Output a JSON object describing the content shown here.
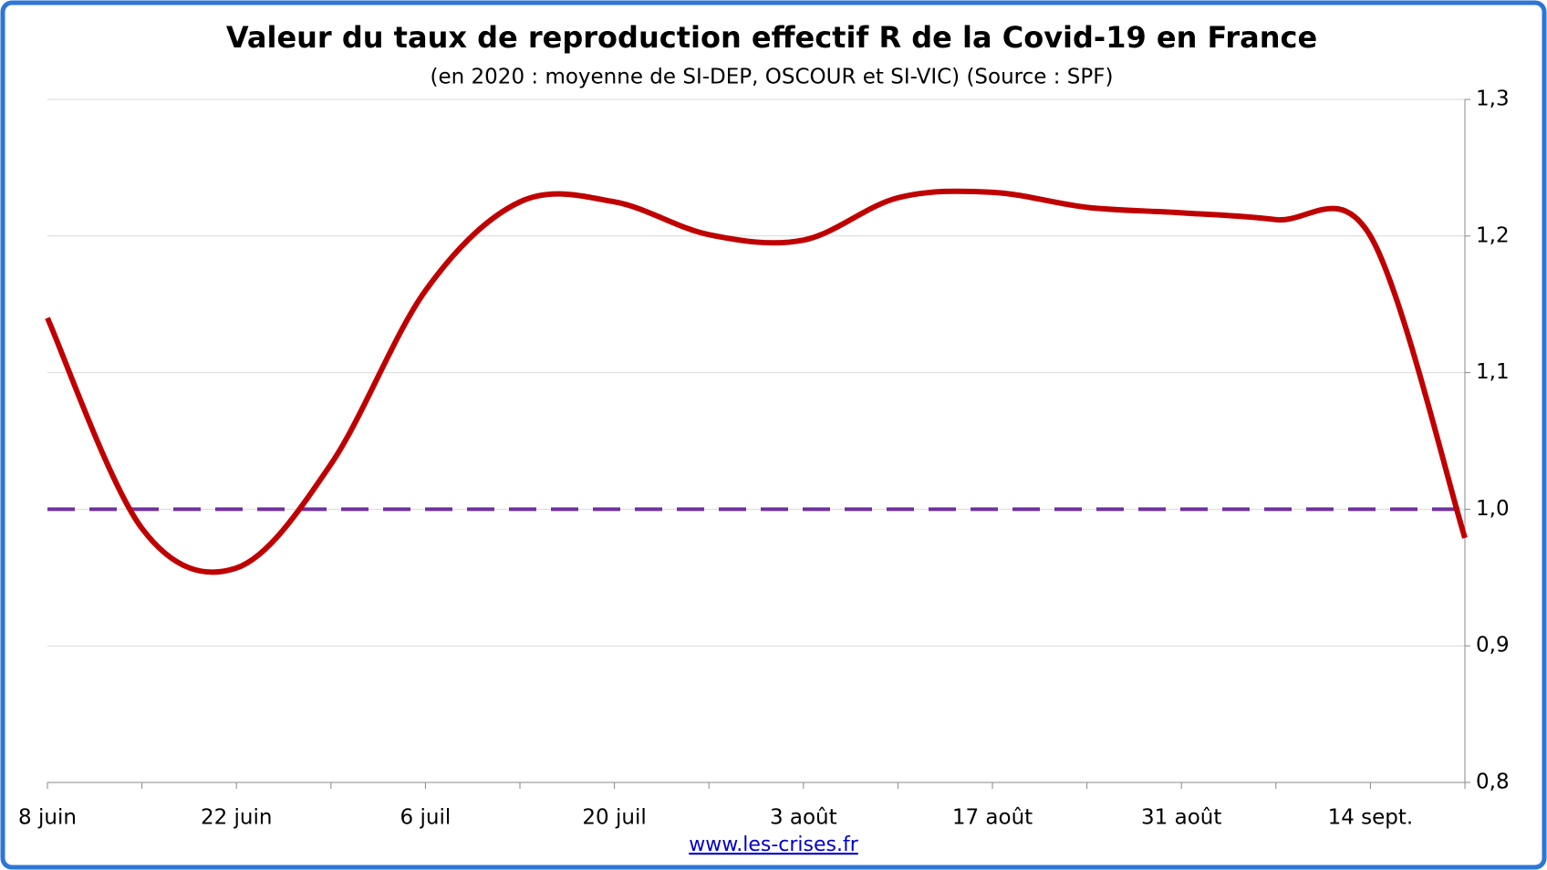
{
  "chart_data": {
    "type": "line",
    "title": "Valeur du taux de reproduction effectif R de la Covid-19 en France",
    "subtitle": "(en 2020 : moyenne de SI-DEP, OSCOUR et SI-VIC) (Source : SPF)",
    "categories": [
      "8 juin",
      null,
      "22 juin",
      null,
      "6 juil",
      null,
      "20 juil",
      null,
      "3 août",
      null,
      "17 août",
      null,
      "31 août",
      null,
      "14 sept.",
      null
    ],
    "series": [
      {
        "name": "R",
        "color": "#c00000",
        "values": [
          1.14,
          0.986,
          0.957,
          1.033,
          1.16,
          1.225,
          1.225,
          1.201,
          1.197,
          1.228,
          1.232,
          1.221,
          1.217,
          1.212,
          1.2,
          0.979
        ]
      }
    ],
    "reference": {
      "value": 1.0,
      "color": "#7030a0"
    },
    "ylim": [
      0.8,
      1.3
    ],
    "yticks": [
      {
        "value": 0.8,
        "label": "0,8"
      },
      {
        "value": 0.9,
        "label": "0,9"
      },
      {
        "value": 1.0,
        "label": "1,0"
      },
      {
        "value": 1.1,
        "label": "1,1"
      },
      {
        "value": 1.2,
        "label": "1,2"
      },
      {
        "value": 1.3,
        "label": "1,3"
      }
    ],
    "yaxis_side": "right",
    "grid": true,
    "source_link": "www.les-crises.fr"
  }
}
